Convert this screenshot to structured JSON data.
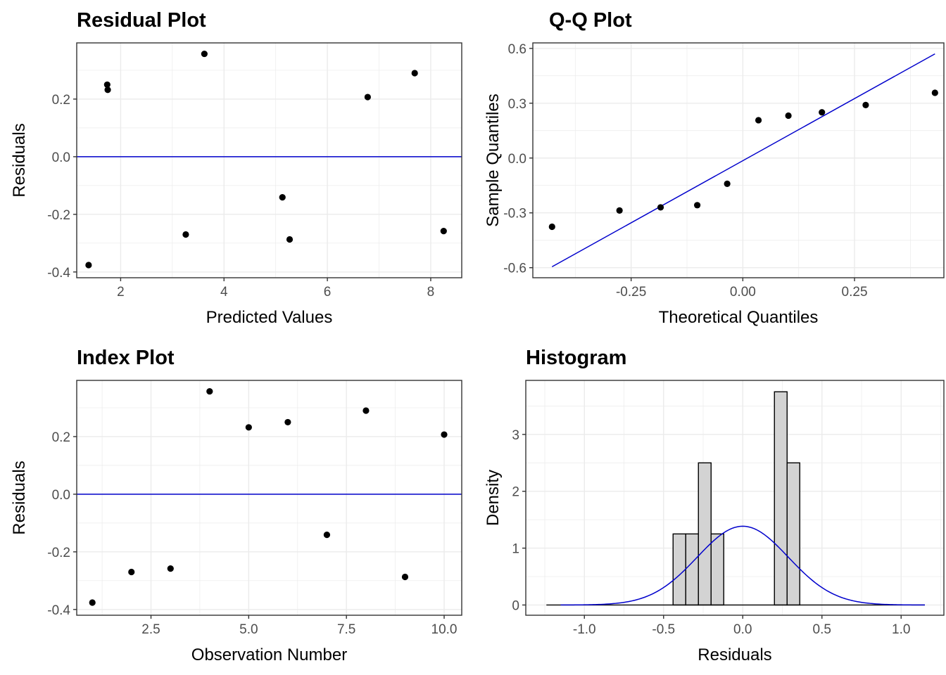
{
  "colors": {
    "point": "#000000",
    "ref_line": "#0000cc",
    "grid": "#ebebeb",
    "panel_border": "#333333",
    "bar_fill": "#d3d3d3"
  },
  "chart_data": [
    {
      "id": "residual",
      "type": "scatter",
      "title": "Residual Plot",
      "xlabel": "Predicted Values",
      "ylabel": "Residuals",
      "xlim": [
        1.15,
        8.6
      ],
      "ylim": [
        -0.42,
        0.395
      ],
      "xticks": [
        2,
        4,
        6,
        8
      ],
      "xtick_labels": [
        "2",
        "4",
        "6",
        "8"
      ],
      "yticks": [
        -0.4,
        -0.2,
        0.0,
        0.2
      ],
      "ytick_labels": [
        "-0.4",
        "-0.2",
        "0.0",
        "0.2"
      ],
      "x": [
        1.38,
        1.74,
        1.75,
        3.26,
        3.62,
        5.13,
        5.27,
        6.78,
        7.69,
        8.25
      ],
      "y": [
        -0.376,
        0.25,
        0.232,
        -0.27,
        0.357,
        -0.141,
        -0.287,
        0.207,
        0.29,
        -0.258
      ],
      "hline": 0
    },
    {
      "id": "qq",
      "type": "scatter",
      "title": "Q-Q Plot",
      "xlabel": "Theoretical Quantiles",
      "ylabel": "Sample Quantiles",
      "xlim": [
        -0.47,
        0.45
      ],
      "ylim": [
        -0.655,
        0.63
      ],
      "xticks": [
        -0.25,
        0.0,
        0.25
      ],
      "xtick_labels": [
        "-0.25",
        "0.00",
        "0.25"
      ],
      "yticks": [
        -0.6,
        -0.3,
        0.0,
        0.3,
        0.6
      ],
      "ytick_labels": [
        "-0.6",
        "-0.3",
        "0.0",
        "0.3",
        "0.6"
      ],
      "x": [
        -0.427,
        -0.276,
        -0.184,
        -0.102,
        -0.035,
        0.035,
        0.102,
        0.177,
        0.275,
        0.43
      ],
      "y": [
        -0.376,
        -0.287,
        -0.27,
        -0.258,
        -0.141,
        0.207,
        0.232,
        0.25,
        0.29,
        0.357
      ],
      "ref_line": {
        "x": [
          -0.427,
          0.43
        ],
        "y": [
          -0.595,
          0.57
        ]
      }
    },
    {
      "id": "index",
      "type": "scatter",
      "title": "Index Plot",
      "xlabel": "Observation Number",
      "ylabel": "Residuals",
      "xlim": [
        0.6,
        10.45
      ],
      "ylim": [
        -0.42,
        0.395
      ],
      "xticks": [
        2.5,
        5.0,
        7.5,
        10.0
      ],
      "xtick_labels": [
        "2.5",
        "5.0",
        "7.5",
        "10.0"
      ],
      "yticks": [
        -0.4,
        -0.2,
        0.0,
        0.2
      ],
      "ytick_labels": [
        "-0.4",
        "-0.2",
        "0.0",
        "0.2"
      ],
      "x": [
        1,
        2,
        3,
        4,
        5,
        6,
        7,
        8,
        9,
        10
      ],
      "y": [
        -0.376,
        -0.27,
        -0.258,
        0.357,
        0.232,
        0.25,
        -0.141,
        0.29,
        -0.287,
        0.207
      ],
      "hline": 0
    },
    {
      "id": "histogram",
      "type": "bar",
      "title": "Histogram",
      "xlabel": "Residuals",
      "ylabel": "Density",
      "xlim": [
        -1.37,
        1.27
      ],
      "ylim": [
        -0.18,
        3.95
      ],
      "xticks": [
        -1.0,
        -0.5,
        0.0,
        0.5,
        1.0
      ],
      "xtick_labels": [
        "-1.0",
        "-0.5",
        "0.0",
        "0.5",
        "1.0"
      ],
      "yticks": [
        0,
        1,
        2,
        3
      ],
      "ytick_labels": [
        "0",
        "1",
        "2",
        "3"
      ],
      "bins": [
        {
          "x0": -0.44,
          "x1": -0.36,
          "density": 1.25
        },
        {
          "x0": -0.36,
          "x1": -0.28,
          "density": 1.25
        },
        {
          "x0": -0.28,
          "x1": -0.2,
          "density": 2.5
        },
        {
          "x0": -0.2,
          "x1": -0.12,
          "density": 1.25
        },
        {
          "x0": 0.2,
          "x1": 0.28,
          "density": 3.75
        },
        {
          "x0": 0.28,
          "x1": 0.36,
          "density": 2.5
        }
      ],
      "baseline": [
        -1.24,
        1.15
      ],
      "density_curve": {
        "mean": 0.0,
        "sd": 0.288,
        "x_range": [
          -1.15,
          1.15
        ]
      }
    }
  ]
}
